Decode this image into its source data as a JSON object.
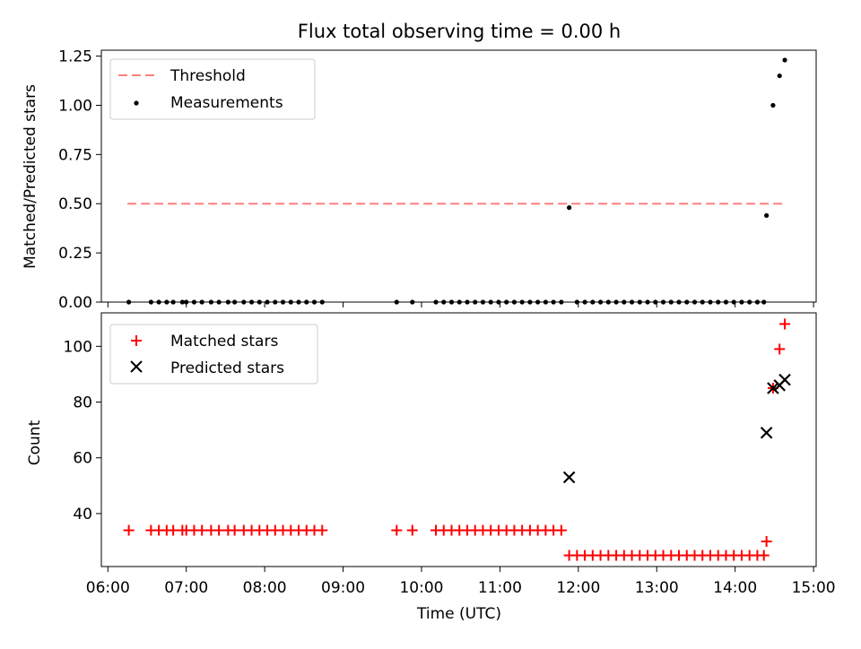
{
  "chart_data": [
    {
      "type": "scatter",
      "title": "Flux total observing time = 0.00 h",
      "ylabel": "Matched/Predicted stars",
      "ylim": [
        0,
        1.28
      ],
      "yticks": [
        "0.00",
        "0.25",
        "0.50",
        "0.75",
        "1.00",
        "1.25"
      ],
      "legend_position": "upper-left",
      "threshold": {
        "name": "Threshold",
        "value": 0.5,
        "x_start": "06:15",
        "x_end": "14:38",
        "color": "#ff7f7f"
      },
      "series": [
        {
          "name": "Measurements",
          "color": "#000000",
          "points": [
            [
              "06:16",
              0.0
            ],
            [
              "06:33",
              0.0
            ],
            [
              "06:39",
              0.0
            ],
            [
              "06:45",
              0.0
            ],
            [
              "06:50",
              0.0
            ],
            [
              "06:57",
              0.0
            ],
            [
              "07:00",
              0.0
            ],
            [
              "07:06",
              0.0
            ],
            [
              "07:12",
              0.0
            ],
            [
              "07:19",
              0.0
            ],
            [
              "07:25",
              0.0
            ],
            [
              "07:32",
              0.0
            ],
            [
              "07:37",
              0.0
            ],
            [
              "07:44",
              0.0
            ],
            [
              "07:50",
              0.0
            ],
            [
              "07:56",
              0.0
            ],
            [
              "08:02",
              0.0
            ],
            [
              "08:08",
              0.0
            ],
            [
              "08:14",
              0.0
            ],
            [
              "08:20",
              0.0
            ],
            [
              "08:26",
              0.0
            ],
            [
              "08:32",
              0.0
            ],
            [
              "08:38",
              0.0
            ],
            [
              "08:44",
              0.0
            ],
            [
              "09:41",
              0.0
            ],
            [
              "09:53",
              0.0
            ],
            [
              "10:11",
              0.0
            ],
            [
              "10:17",
              0.0
            ],
            [
              "10:23",
              0.0
            ],
            [
              "10:29",
              0.0
            ],
            [
              "10:35",
              0.0
            ],
            [
              "10:41",
              0.0
            ],
            [
              "10:47",
              0.0
            ],
            [
              "10:53",
              0.0
            ],
            [
              "10:59",
              0.0
            ],
            [
              "11:05",
              0.0
            ],
            [
              "11:11",
              0.0
            ],
            [
              "11:17",
              0.0
            ],
            [
              "11:23",
              0.0
            ],
            [
              "11:29",
              0.0
            ],
            [
              "11:35",
              0.0
            ],
            [
              "11:41",
              0.0
            ],
            [
              "11:47",
              0.0
            ],
            [
              "11:53",
              0.48
            ],
            [
              "11:59",
              0.0
            ],
            [
              "12:05",
              0.0
            ],
            [
              "12:11",
              0.0
            ],
            [
              "12:17",
              0.0
            ],
            [
              "12:23",
              0.0
            ],
            [
              "12:29",
              0.0
            ],
            [
              "12:35",
              0.0
            ],
            [
              "12:41",
              0.0
            ],
            [
              "12:47",
              0.0
            ],
            [
              "12:53",
              0.0
            ],
            [
              "12:59",
              0.0
            ],
            [
              "13:05",
              0.0
            ],
            [
              "13:11",
              0.0
            ],
            [
              "13:17",
              0.0
            ],
            [
              "13:23",
              0.0
            ],
            [
              "13:29",
              0.0
            ],
            [
              "13:35",
              0.0
            ],
            [
              "13:41",
              0.0
            ],
            [
              "13:47",
              0.0
            ],
            [
              "13:53",
              0.0
            ],
            [
              "13:59",
              0.0
            ],
            [
              "14:05",
              0.0
            ],
            [
              "14:11",
              0.0
            ],
            [
              "14:17",
              0.0
            ],
            [
              "14:22",
              0.0
            ],
            [
              "14:24",
              0.44
            ],
            [
              "14:29",
              1.0
            ],
            [
              "14:34",
              1.15
            ],
            [
              "14:38",
              1.23
            ]
          ]
        }
      ]
    },
    {
      "type": "scatter",
      "xlabel": "Time (UTC)",
      "ylabel": "Count",
      "ylim": [
        21,
        112
      ],
      "yticks": [
        40,
        60,
        80,
        100
      ],
      "xlim": [
        "05:55",
        "15:02"
      ],
      "xticks": [
        "06:00",
        "07:00",
        "08:00",
        "09:00",
        "10:00",
        "11:00",
        "12:00",
        "13:00",
        "14:00",
        "15:00"
      ],
      "legend_position": "upper-left",
      "series": [
        {
          "name": "Matched stars",
          "marker": "plus",
          "color": "#ff0000",
          "points": [
            [
              "06:16",
              34
            ],
            [
              "06:33",
              34
            ],
            [
              "06:39",
              34
            ],
            [
              "06:45",
              34
            ],
            [
              "06:50",
              34
            ],
            [
              "06:57",
              34
            ],
            [
              "07:00",
              34
            ],
            [
              "07:06",
              34
            ],
            [
              "07:12",
              34
            ],
            [
              "07:19",
              34
            ],
            [
              "07:25",
              34
            ],
            [
              "07:32",
              34
            ],
            [
              "07:37",
              34
            ],
            [
              "07:44",
              34
            ],
            [
              "07:50",
              34
            ],
            [
              "07:56",
              34
            ],
            [
              "08:02",
              34
            ],
            [
              "08:08",
              34
            ],
            [
              "08:14",
              34
            ],
            [
              "08:20",
              34
            ],
            [
              "08:26",
              34
            ],
            [
              "08:32",
              34
            ],
            [
              "08:38",
              34
            ],
            [
              "08:44",
              34
            ],
            [
              "09:41",
              34
            ],
            [
              "09:53",
              34
            ],
            [
              "10:11",
              34
            ],
            [
              "10:17",
              34
            ],
            [
              "10:23",
              34
            ],
            [
              "10:29",
              34
            ],
            [
              "10:35",
              34
            ],
            [
              "10:41",
              34
            ],
            [
              "10:47",
              34
            ],
            [
              "10:53",
              34
            ],
            [
              "10:59",
              34
            ],
            [
              "11:05",
              34
            ],
            [
              "11:11",
              34
            ],
            [
              "11:17",
              34
            ],
            [
              "11:23",
              34
            ],
            [
              "11:29",
              34
            ],
            [
              "11:35",
              34
            ],
            [
              "11:41",
              34
            ],
            [
              "11:47",
              34
            ],
            [
              "11:53",
              25
            ],
            [
              "11:59",
              25
            ],
            [
              "12:05",
              25
            ],
            [
              "12:11",
              25
            ],
            [
              "12:17",
              25
            ],
            [
              "12:23",
              25
            ],
            [
              "12:29",
              25
            ],
            [
              "12:35",
              25
            ],
            [
              "12:41",
              25
            ],
            [
              "12:47",
              25
            ],
            [
              "12:53",
              25
            ],
            [
              "12:59",
              25
            ],
            [
              "13:05",
              25
            ],
            [
              "13:11",
              25
            ],
            [
              "13:17",
              25
            ],
            [
              "13:23",
              25
            ],
            [
              "13:29",
              25
            ],
            [
              "13:35",
              25
            ],
            [
              "13:41",
              25
            ],
            [
              "13:47",
              25
            ],
            [
              "13:53",
              25
            ],
            [
              "13:59",
              25
            ],
            [
              "14:05",
              25
            ],
            [
              "14:11",
              25
            ],
            [
              "14:17",
              25
            ],
            [
              "14:22",
              25
            ],
            [
              "14:24",
              30
            ],
            [
              "14:29",
              85
            ],
            [
              "14:34",
              99
            ],
            [
              "14:38",
              108
            ]
          ]
        },
        {
          "name": "Predicted stars",
          "marker": "x",
          "color": "#000000",
          "points": [
            [
              "11:53",
              53
            ],
            [
              "14:24",
              69
            ],
            [
              "14:29",
              85
            ],
            [
              "14:34",
              86
            ],
            [
              "14:38",
              88
            ]
          ]
        }
      ]
    }
  ]
}
